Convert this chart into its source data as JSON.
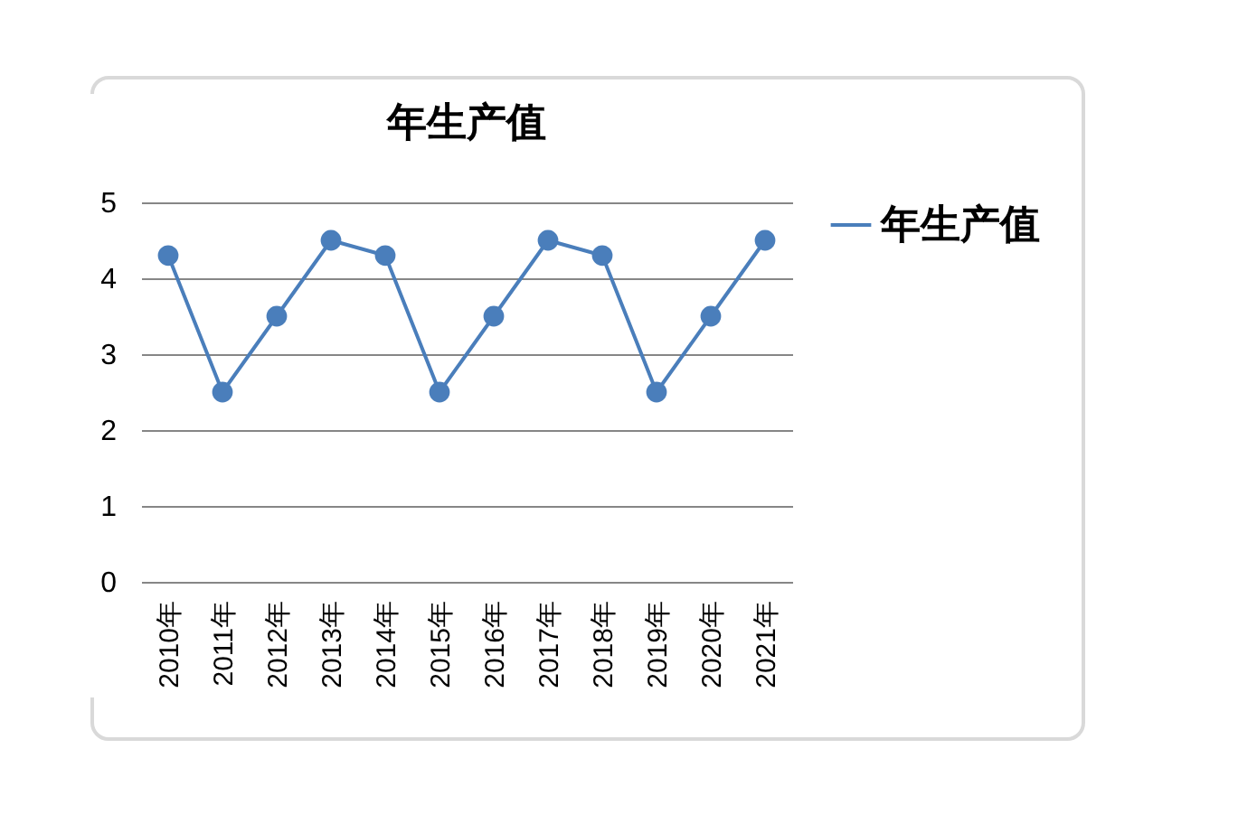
{
  "chart_data": {
    "type": "line",
    "title": "年生产值",
    "categories": [
      "2010年",
      "2011年",
      "2012年",
      "2013年",
      "2014年",
      "2015年",
      "2016年",
      "2017年",
      "2018年",
      "2019年",
      "2020年",
      "2021年"
    ],
    "series": [
      {
        "name": "年生产值",
        "color": "#4a7ebb",
        "values": [
          4.3,
          2.5,
          3.5,
          4.5,
          4.3,
          2.5,
          3.5,
          4.5,
          4.3,
          2.5,
          3.5,
          4.5
        ]
      }
    ],
    "ylim": [
      0,
      5
    ],
    "yticks": [
      0,
      1,
      2,
      3,
      4,
      5
    ],
    "grid": "y",
    "legend": "right",
    "marker": "circle",
    "line_style": "solid"
  }
}
